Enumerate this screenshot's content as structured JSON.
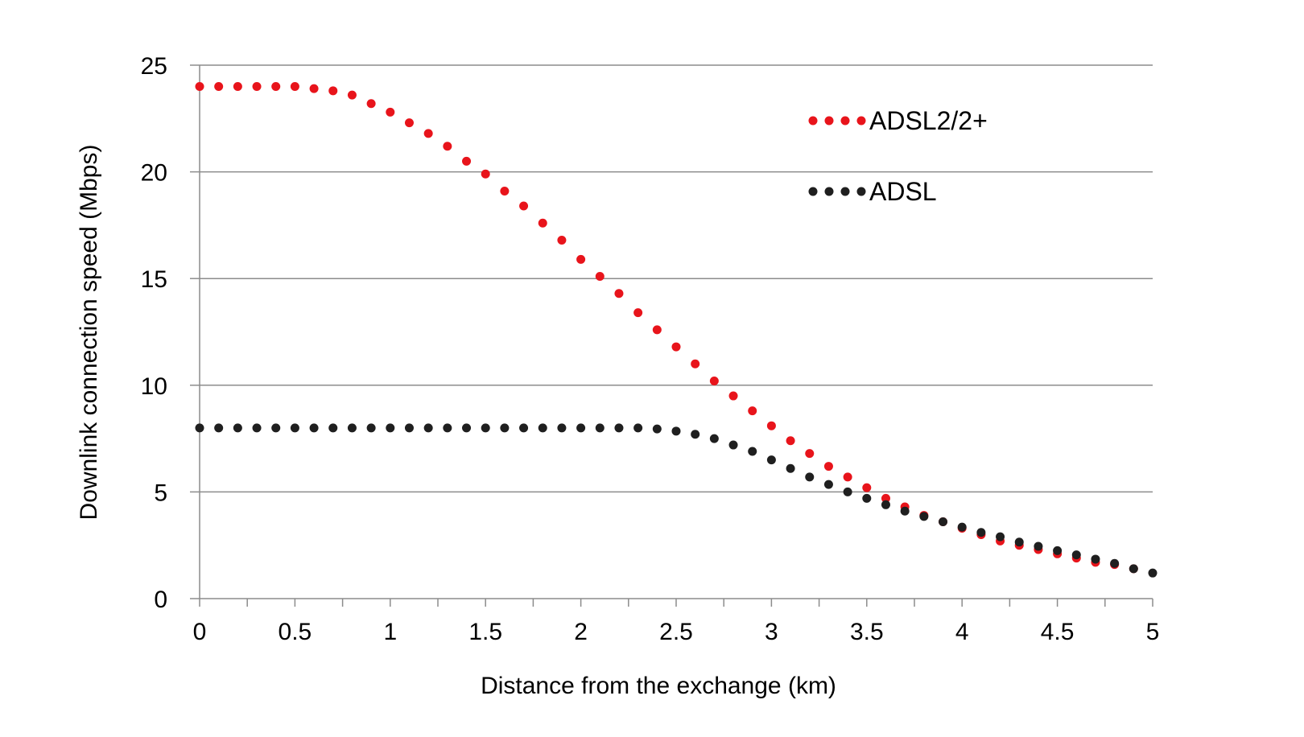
{
  "chart_data": {
    "type": "scatter",
    "title": "",
    "xlabel": "Distance from the exchange (km)",
    "ylabel": "Downlink connection speed (Mbps)",
    "xlim": [
      0,
      5
    ],
    "ylim": [
      0,
      25
    ],
    "x_ticks": [
      "0",
      "0.5",
      "1",
      "1.5",
      "2",
      "2.5",
      "3",
      "3.5",
      "4",
      "4.5",
      "5"
    ],
    "y_ticks": [
      "0",
      "5",
      "10",
      "15",
      "20",
      "25"
    ],
    "grid": "horizontal",
    "legend_position": "top-right",
    "series": [
      {
        "name": "ADSL2/2+",
        "color": "#e8141b",
        "x": [
          0,
          0.1,
          0.2,
          0.3,
          0.4,
          0.5,
          0.6,
          0.7,
          0.8,
          0.9,
          1.0,
          1.1,
          1.2,
          1.3,
          1.4,
          1.5,
          1.6,
          1.7,
          1.8,
          1.9,
          2.0,
          2.1,
          2.2,
          2.3,
          2.4,
          2.5,
          2.6,
          2.7,
          2.8,
          2.9,
          3.0,
          3.1,
          3.2,
          3.3,
          3.4,
          3.5,
          3.6,
          3.7,
          3.8,
          3.9,
          4.0,
          4.1,
          4.2,
          4.3,
          4.4,
          4.5,
          4.6,
          4.7,
          4.8,
          4.9
        ],
        "y": [
          24.0,
          24.0,
          24.0,
          24.0,
          24.0,
          24.0,
          23.9,
          23.8,
          23.6,
          23.2,
          22.8,
          22.3,
          21.8,
          21.2,
          20.5,
          19.9,
          19.1,
          18.4,
          17.6,
          16.8,
          15.9,
          15.1,
          14.3,
          13.4,
          12.6,
          11.8,
          11.0,
          10.2,
          9.5,
          8.8,
          8.1,
          7.4,
          6.8,
          6.2,
          5.7,
          5.2,
          4.7,
          4.3,
          3.9,
          3.6,
          3.3,
          3.0,
          2.7,
          2.5,
          2.3,
          2.1,
          1.9,
          1.7,
          1.6,
          1.4
        ]
      },
      {
        "name": "ADSL",
        "color": "#1f1f1f",
        "x": [
          0,
          0.1,
          0.2,
          0.3,
          0.4,
          0.5,
          0.6,
          0.7,
          0.8,
          0.9,
          1.0,
          1.1,
          1.2,
          1.3,
          1.4,
          1.5,
          1.6,
          1.7,
          1.8,
          1.9,
          2.0,
          2.1,
          2.2,
          2.3,
          2.4,
          2.5,
          2.6,
          2.7,
          2.8,
          2.9,
          3.0,
          3.1,
          3.2,
          3.3,
          3.4,
          3.5,
          3.6,
          3.7,
          3.8,
          3.9,
          4.0,
          4.1,
          4.2,
          4.3,
          4.4,
          4.5,
          4.6,
          4.7,
          4.8,
          4.9,
          5.0
        ],
        "y": [
          8.0,
          8.0,
          8.0,
          8.0,
          8.0,
          8.0,
          8.0,
          8.0,
          8.0,
          8.0,
          8.0,
          8.0,
          8.0,
          8.0,
          8.0,
          8.0,
          8.0,
          8.0,
          8.0,
          8.0,
          8.0,
          8.0,
          8.0,
          8.0,
          7.95,
          7.85,
          7.7,
          7.5,
          7.2,
          6.9,
          6.5,
          6.1,
          5.7,
          5.35,
          5.0,
          4.7,
          4.4,
          4.1,
          3.85,
          3.6,
          3.35,
          3.1,
          2.9,
          2.65,
          2.45,
          2.25,
          2.05,
          1.85,
          1.65,
          1.4,
          1.2
        ]
      }
    ]
  }
}
